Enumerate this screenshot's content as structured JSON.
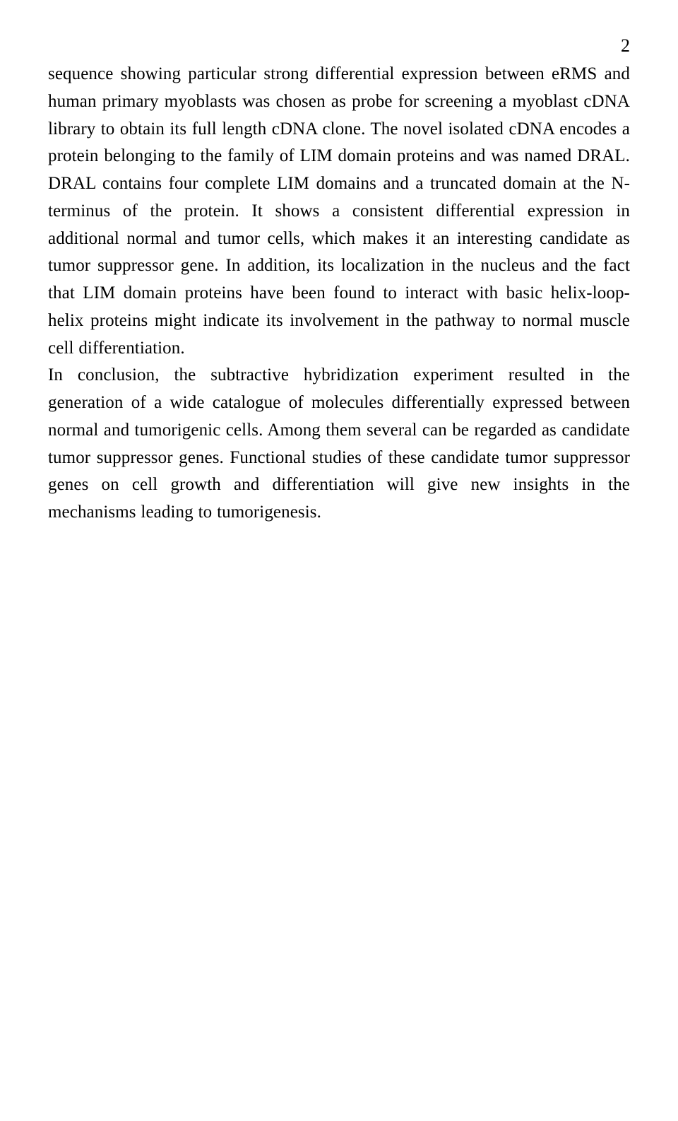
{
  "page_number": "2",
  "paragraphs": [
    "sequence showing particular strong differential expression between eRMS and human primary myoblasts was chosen as probe for screening a myoblast cDNA library to obtain its full length cDNA clone. The novel isolated cDNA encodes a protein belonging to the family of LIM domain proteins and was named DRAL. DRAL contains four complete LIM domains and a truncated domain at the N-terminus of the protein. It shows a consistent differential expression in additional normal and tumor cells, which makes it an interesting candidate as tumor suppressor gene. In addition, its localization in the nucleus and the fact that LIM domain proteins have been found to interact with basic helix-loop-helix proteins might indicate its involvement in the pathway to normal muscle cell differentiation.",
    "In conclusion, the subtractive hybridization experiment resulted in the generation of a wide catalogue of molecules differentially expressed between normal and tumorigenic cells. Among them several can be regarded as candidate tumor suppressor genes. Functional studies of these candidate tumor suppressor genes on cell growth and differentiation will give new insights in the mechanisms leading to tumorigenesis."
  ]
}
